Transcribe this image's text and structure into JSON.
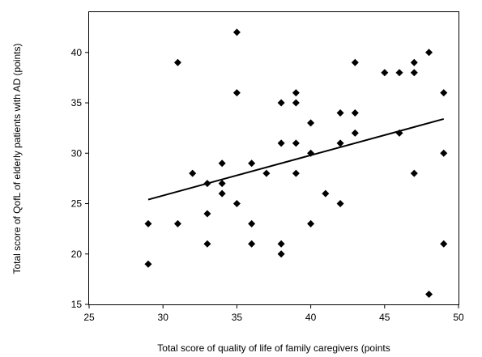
{
  "chart_data": {
    "type": "scatter",
    "title": "",
    "xlabel": "Total score of quality of life of family caregivers (points",
    "ylabel": "Total score of QofL of elderly patients with AD (points)",
    "xlim": [
      25,
      50
    ],
    "ylim": [
      15,
      44
    ],
    "xticks": [
      25,
      30,
      35,
      40,
      45,
      50
    ],
    "yticks": [
      15,
      20,
      25,
      30,
      35,
      40
    ],
    "grid": false,
    "legend": "none",
    "marker": "diamond",
    "marker_color": "#000000",
    "points": [
      {
        "x": 29,
        "y": 23
      },
      {
        "x": 29,
        "y": 19
      },
      {
        "x": 31,
        "y": 39
      },
      {
        "x": 31,
        "y": 23
      },
      {
        "x": 32,
        "y": 28
      },
      {
        "x": 33,
        "y": 27
      },
      {
        "x": 33,
        "y": 24
      },
      {
        "x": 33,
        "y": 21
      },
      {
        "x": 34,
        "y": 29
      },
      {
        "x": 34,
        "y": 27
      },
      {
        "x": 34,
        "y": 26
      },
      {
        "x": 35,
        "y": 42
      },
      {
        "x": 35,
        "y": 36
      },
      {
        "x": 35,
        "y": 25
      },
      {
        "x": 36,
        "y": 29
      },
      {
        "x": 36,
        "y": 23
      },
      {
        "x": 36,
        "y": 21
      },
      {
        "x": 37,
        "y": 28
      },
      {
        "x": 38,
        "y": 35
      },
      {
        "x": 38,
        "y": 31
      },
      {
        "x": 38,
        "y": 21
      },
      {
        "x": 38,
        "y": 20
      },
      {
        "x": 39,
        "y": 36
      },
      {
        "x": 39,
        "y": 35
      },
      {
        "x": 39,
        "y": 31
      },
      {
        "x": 39,
        "y": 28
      },
      {
        "x": 40,
        "y": 33
      },
      {
        "x": 40,
        "y": 30
      },
      {
        "x": 40,
        "y": 23
      },
      {
        "x": 41,
        "y": 26
      },
      {
        "x": 42,
        "y": 34
      },
      {
        "x": 42,
        "y": 31
      },
      {
        "x": 42,
        "y": 25
      },
      {
        "x": 43,
        "y": 39
      },
      {
        "x": 43,
        "y": 34
      },
      {
        "x": 43,
        "y": 32
      },
      {
        "x": 45,
        "y": 38
      },
      {
        "x": 46,
        "y": 38
      },
      {
        "x": 46,
        "y": 32
      },
      {
        "x": 47,
        "y": 39
      },
      {
        "x": 47,
        "y": 38
      },
      {
        "x": 47,
        "y": 28
      },
      {
        "x": 48,
        "y": 40
      },
      {
        "x": 48,
        "y": 16
      },
      {
        "x": 49,
        "y": 36
      },
      {
        "x": 49,
        "y": 30
      },
      {
        "x": 49,
        "y": 21
      }
    ],
    "trendline": {
      "x": [
        29,
        49
      ],
      "y": [
        25.4,
        33.4
      ]
    }
  }
}
